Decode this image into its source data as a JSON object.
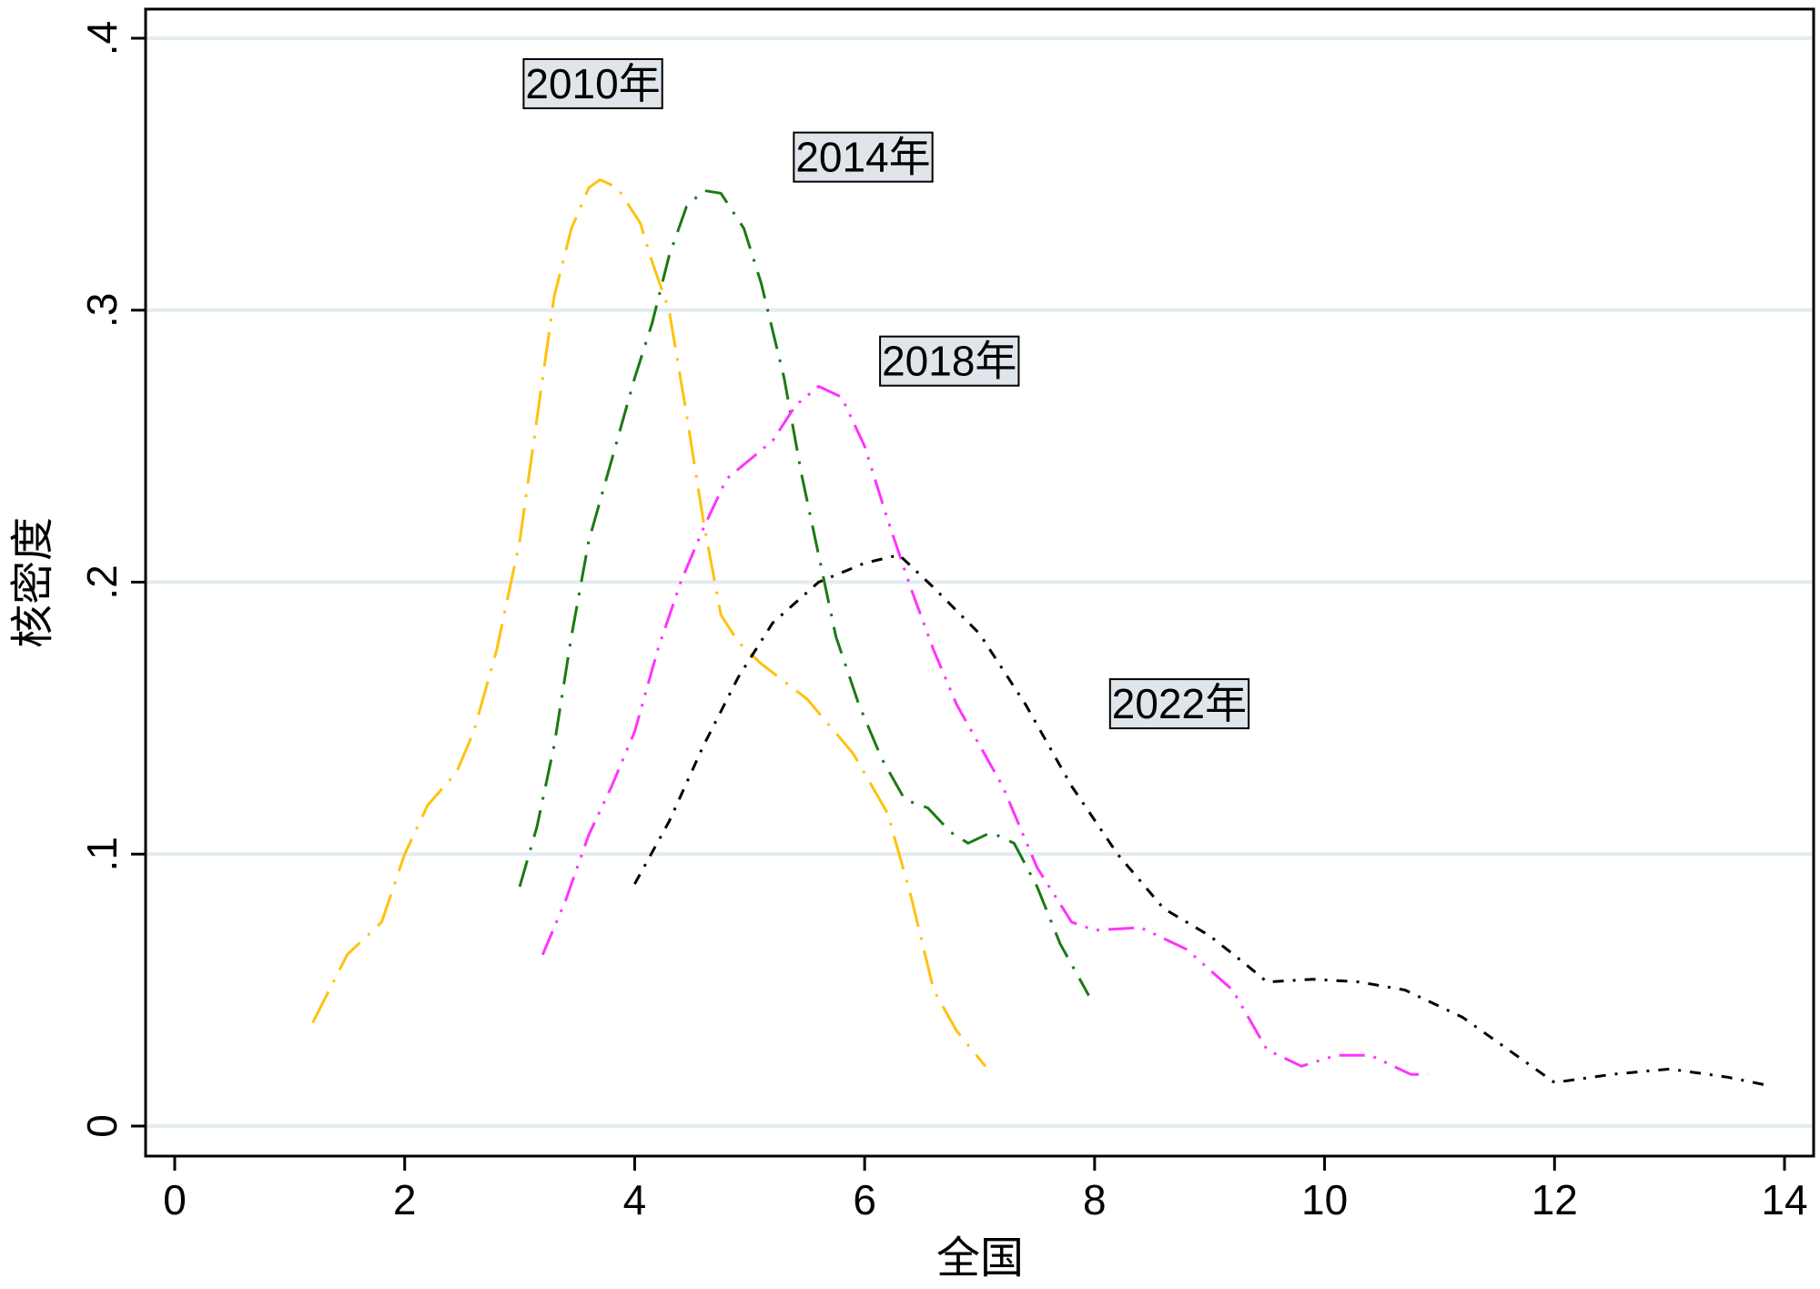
{
  "chart_data": {
    "type": "line",
    "title": "",
    "xlabel": "全国",
    "ylabel": "核密度",
    "xlim": [
      0,
      14
    ],
    "ylim": [
      0,
      0.4
    ],
    "x_ticks": [
      0,
      2,
      4,
      6,
      8,
      10,
      12,
      14
    ],
    "x_tick_labels": [
      "0",
      "2",
      "4",
      "6",
      "8",
      "10",
      "12",
      "14"
    ],
    "y_ticks": [
      0,
      0.1,
      0.2,
      0.3,
      0.4
    ],
    "y_tick_labels": [
      "0",
      ".1",
      ".2",
      ".3",
      ".4"
    ],
    "grid": "horizontal",
    "legend": "none",
    "series": [
      {
        "name": "2010年",
        "color": "#ffc20e",
        "dash": "long-dash-dot",
        "points": [
          [
            1.2,
            0.038
          ],
          [
            1.5,
            0.063
          ],
          [
            1.8,
            0.075
          ],
          [
            2.0,
            0.1
          ],
          [
            2.2,
            0.118
          ],
          [
            2.45,
            0.13
          ],
          [
            2.6,
            0.145
          ],
          [
            2.8,
            0.175
          ],
          [
            3.0,
            0.215
          ],
          [
            3.15,
            0.26
          ],
          [
            3.3,
            0.305
          ],
          [
            3.45,
            0.33
          ],
          [
            3.6,
            0.345
          ],
          [
            3.7,
            0.348
          ],
          [
            3.85,
            0.345
          ],
          [
            4.05,
            0.332
          ],
          [
            4.15,
            0.318
          ],
          [
            4.3,
            0.3
          ],
          [
            4.45,
            0.262
          ],
          [
            4.6,
            0.222
          ],
          [
            4.75,
            0.188
          ],
          [
            4.9,
            0.178
          ],
          [
            5.1,
            0.17
          ],
          [
            5.5,
            0.157
          ],
          [
            5.9,
            0.137
          ],
          [
            6.2,
            0.115
          ],
          [
            6.4,
            0.085
          ],
          [
            6.6,
            0.05
          ],
          [
            6.8,
            0.035
          ],
          [
            7.05,
            0.022
          ]
        ]
      },
      {
        "name": "2014年",
        "color": "#1a7a14",
        "dash": "dash-dot",
        "points": [
          [
            3.0,
            0.088
          ],
          [
            3.15,
            0.11
          ],
          [
            3.3,
            0.14
          ],
          [
            3.45,
            0.18
          ],
          [
            3.6,
            0.215
          ],
          [
            3.8,
            0.245
          ],
          [
            4.0,
            0.275
          ],
          [
            4.15,
            0.295
          ],
          [
            4.3,
            0.32
          ],
          [
            4.45,
            0.338
          ],
          [
            4.6,
            0.344
          ],
          [
            4.75,
            0.343
          ],
          [
            4.95,
            0.33
          ],
          [
            5.1,
            0.31
          ],
          [
            5.3,
            0.275
          ],
          [
            5.45,
            0.24
          ],
          [
            5.6,
            0.21
          ],
          [
            5.75,
            0.18
          ],
          [
            5.95,
            0.155
          ],
          [
            6.15,
            0.135
          ],
          [
            6.35,
            0.12
          ],
          [
            6.55,
            0.117
          ],
          [
            6.75,
            0.108
          ],
          [
            6.9,
            0.104
          ],
          [
            7.1,
            0.108
          ],
          [
            7.3,
            0.104
          ],
          [
            7.5,
            0.088
          ],
          [
            7.7,
            0.067
          ],
          [
            7.95,
            0.048
          ]
        ]
      },
      {
        "name": "2018年",
        "color": "#ff33ff",
        "dash": "dash-dot-dot",
        "points": [
          [
            3.2,
            0.063
          ],
          [
            3.4,
            0.083
          ],
          [
            3.6,
            0.107
          ],
          [
            3.8,
            0.125
          ],
          [
            4.0,
            0.145
          ],
          [
            4.2,
            0.175
          ],
          [
            4.4,
            0.2
          ],
          [
            4.6,
            0.22
          ],
          [
            4.8,
            0.238
          ],
          [
            5.0,
            0.245
          ],
          [
            5.2,
            0.252
          ],
          [
            5.4,
            0.265
          ],
          [
            5.6,
            0.272
          ],
          [
            5.8,
            0.268
          ],
          [
            6.0,
            0.25
          ],
          [
            6.2,
            0.223
          ],
          [
            6.4,
            0.198
          ],
          [
            6.6,
            0.175
          ],
          [
            6.8,
            0.155
          ],
          [
            7.0,
            0.14
          ],
          [
            7.2,
            0.125
          ],
          [
            7.5,
            0.095
          ],
          [
            7.8,
            0.075
          ],
          [
            8.0,
            0.072
          ],
          [
            8.4,
            0.073
          ],
          [
            8.8,
            0.065
          ],
          [
            9.2,
            0.05
          ],
          [
            9.5,
            0.028
          ],
          [
            9.8,
            0.022
          ],
          [
            10.1,
            0.026
          ],
          [
            10.4,
            0.026
          ],
          [
            10.75,
            0.019
          ],
          [
            10.9,
            0.019
          ]
        ]
      },
      {
        "name": "2022年",
        "color": "#000000",
        "dash": "short-dash-dot",
        "points": [
          [
            4.0,
            0.089
          ],
          [
            4.3,
            0.112
          ],
          [
            4.6,
            0.14
          ],
          [
            4.9,
            0.165
          ],
          [
            5.2,
            0.185
          ],
          [
            5.6,
            0.2
          ],
          [
            6.0,
            0.207
          ],
          [
            6.3,
            0.21
          ],
          [
            6.6,
            0.198
          ],
          [
            7.0,
            0.181
          ],
          [
            7.4,
            0.155
          ],
          [
            7.8,
            0.125
          ],
          [
            8.2,
            0.1
          ],
          [
            8.6,
            0.08
          ],
          [
            9.0,
            0.07
          ],
          [
            9.3,
            0.06
          ],
          [
            9.5,
            0.053
          ],
          [
            9.9,
            0.054
          ],
          [
            10.3,
            0.053
          ],
          [
            10.7,
            0.05
          ],
          [
            11.2,
            0.04
          ],
          [
            11.6,
            0.028
          ],
          [
            12.0,
            0.016
          ],
          [
            12.5,
            0.019
          ],
          [
            13.0,
            0.021
          ],
          [
            13.5,
            0.018
          ],
          [
            13.85,
            0.015
          ]
        ]
      }
    ],
    "annotations": [
      {
        "text": "2010年",
        "x": 3.05,
        "y": 0.382
      },
      {
        "text": "2014年",
        "x": 5.4,
        "y": 0.355
      },
      {
        "text": "2018年",
        "x": 6.15,
        "y": 0.28
      },
      {
        "text": "2022年",
        "x": 8.15,
        "y": 0.154
      }
    ]
  }
}
